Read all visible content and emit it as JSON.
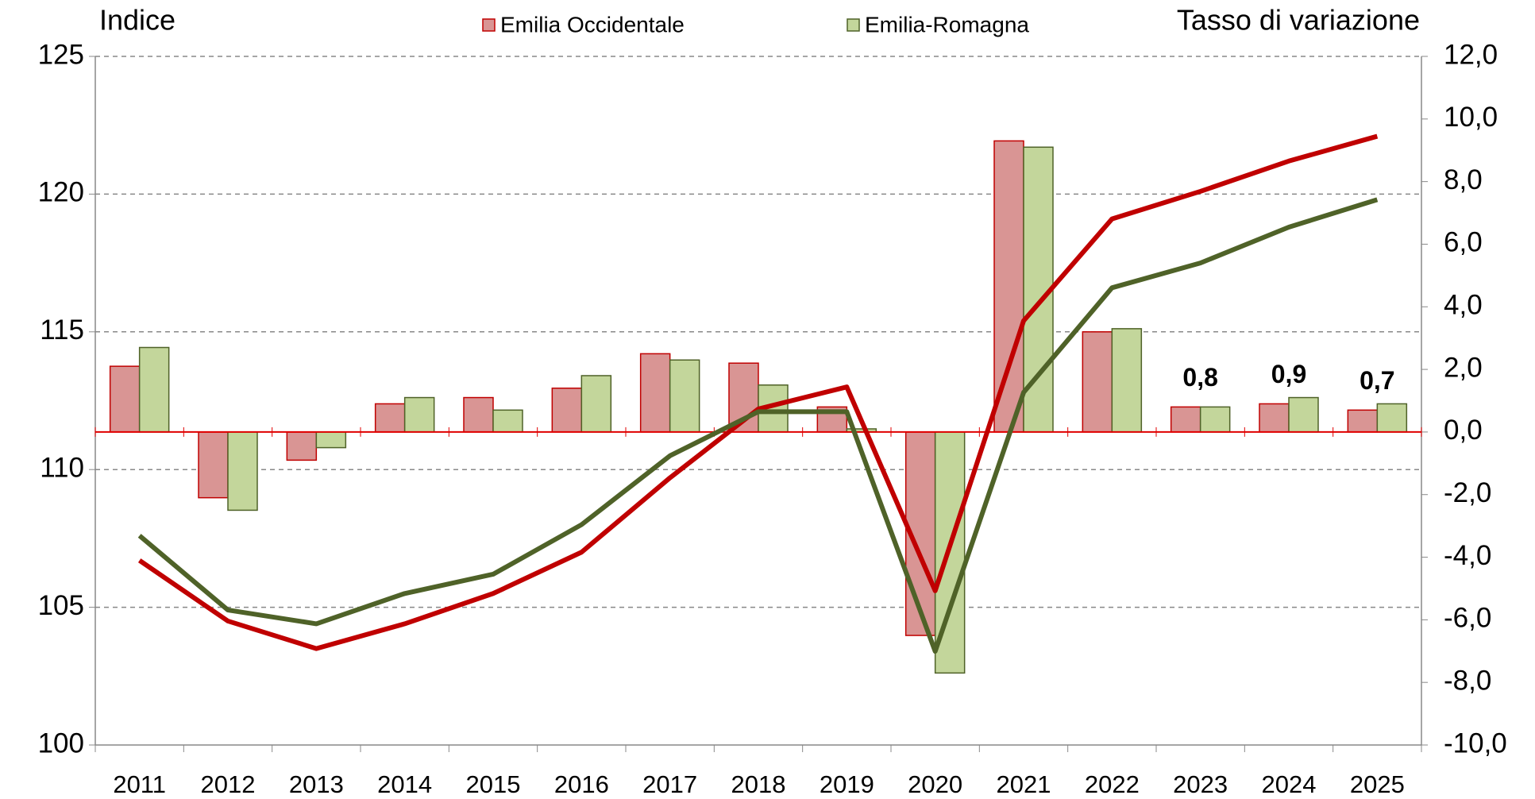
{
  "chart_data": {
    "type": "bar_line",
    "ylabel": "Indice",
    "y2label": "Tasso di variazione",
    "title_color": "#e00000",
    "categories": [
      "2011",
      "2012",
      "2013",
      "2014",
      "2015",
      "2016",
      "2017",
      "2018",
      "2019",
      "2020",
      "2021",
      "2022",
      "2023",
      "2024",
      "2025"
    ],
    "series": [
      {
        "name": "Emilia Occidentale",
        "color": "#d99594",
        "edge": "#c00000",
        "axis": "y2",
        "values": [
          2.1,
          -2.1,
          -0.9,
          0.9,
          1.1,
          1.4,
          2.5,
          2.2,
          0.8,
          -6.5,
          9.3,
          3.2,
          0.8,
          0.9,
          0.7
        ],
        "value_labels": [
          null,
          null,
          null,
          null,
          null,
          null,
          null,
          null,
          null,
          null,
          null,
          null,
          "0,8",
          "0,9",
          "0,7"
        ]
      },
      {
        "name": "Emilia-Romagna",
        "color": "#c3d69b",
        "edge": "#4f6228",
        "axis": "y2",
        "values": [
          2.7,
          -2.5,
          -0.5,
          1.1,
          0.7,
          1.8,
          2.3,
          1.5,
          0.1,
          -7.7,
          9.1,
          3.3,
          0.8,
          1.1,
          0.9
        ]
      }
    ],
    "lines": [
      {
        "color": "#c00000",
        "values": [
          106.7,
          104.5,
          103.5,
          104.4,
          105.5,
          107.0,
          109.7,
          112.2,
          113.0,
          105.6,
          115.4,
          119.1,
          120.1,
          121.2,
          122.1
        ]
      },
      {
        "color": "#4f6228",
        "values": [
          107.6,
          104.9,
          104.4,
          105.5,
          106.2,
          108.0,
          110.5,
          112.1,
          112.1,
          103.4,
          112.8,
          116.6,
          117.5,
          118.8,
          119.8
        ]
      }
    ],
    "ylim": [
      100,
      125
    ],
    "yticks": [
      100,
      105,
      110,
      115,
      120,
      125
    ],
    "y2lim": [
      -10,
      12
    ],
    "y2ticks": [
      {
        "value": -10,
        "label": "-10,0"
      },
      {
        "value": -8,
        "label": "-8,0"
      },
      {
        "value": -6,
        "label": "-6,0"
      },
      {
        "value": -4,
        "label": "-4,0"
      },
      {
        "value": -2,
        "label": "-2,0"
      },
      {
        "value": 0,
        "label": "0,0"
      },
      {
        "value": 2,
        "label": "2,0"
      },
      {
        "value": 4,
        "label": "4,0"
      },
      {
        "value": 6,
        "label": "6,0"
      },
      {
        "value": 8,
        "label": "8,0"
      },
      {
        "value": 10,
        "label": "10,0"
      },
      {
        "value": 12,
        "label": "12,0"
      }
    ],
    "negative_tick_color": "#e00000",
    "zero_line_color": "#e00000",
    "grid": true
  }
}
